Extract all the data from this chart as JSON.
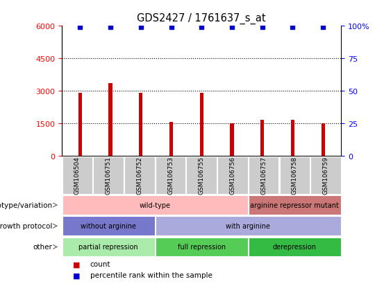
{
  "title": "GDS2427 / 1761637_s_at",
  "samples": [
    "GSM106504",
    "GSM106751",
    "GSM106752",
    "GSM106753",
    "GSM106755",
    "GSM106756",
    "GSM106757",
    "GSM106758",
    "GSM106759"
  ],
  "counts": [
    2900,
    3350,
    2900,
    1550,
    2900,
    1500,
    1650,
    1650,
    1500
  ],
  "percentile_ranks": [
    99,
    99,
    99,
    99,
    99,
    99,
    99,
    99,
    99
  ],
  "bar_color": "#cc0000",
  "dot_color": "#0000cc",
  "ylim_left": [
    0,
    6000
  ],
  "ylim_right": [
    0,
    100
  ],
  "yticks_left": [
    0,
    1500,
    3000,
    4500,
    6000
  ],
  "yticks_right": [
    0,
    25,
    50,
    75,
    100
  ],
  "annotation_rows": [
    {
      "label": "other",
      "segments": [
        {
          "text": "partial repression",
          "start": 0,
          "end": 3,
          "color": "#aaeaaa"
        },
        {
          "text": "full repression",
          "start": 3,
          "end": 6,
          "color": "#55cc55"
        },
        {
          "text": "derepression",
          "start": 6,
          "end": 9,
          "color": "#33bb44"
        }
      ]
    },
    {
      "label": "growth protocol",
      "segments": [
        {
          "text": "without arginine",
          "start": 0,
          "end": 3,
          "color": "#7777cc"
        },
        {
          "text": "with arginine",
          "start": 3,
          "end": 9,
          "color": "#aaaadd"
        }
      ]
    },
    {
      "label": "genotype/variation",
      "segments": [
        {
          "text": "wild-type",
          "start": 0,
          "end": 6,
          "color": "#ffbbbb"
        },
        {
          "text": "arginine repressor mutant",
          "start": 6,
          "end": 9,
          "color": "#cc7777"
        }
      ]
    }
  ],
  "legend_items": [
    {
      "color": "#cc0000",
      "label": "count"
    },
    {
      "color": "#0000cc",
      "label": "percentile rank within the sample"
    }
  ],
  "background_color": "#ffffff",
  "tick_bg_color": "#cccccc"
}
